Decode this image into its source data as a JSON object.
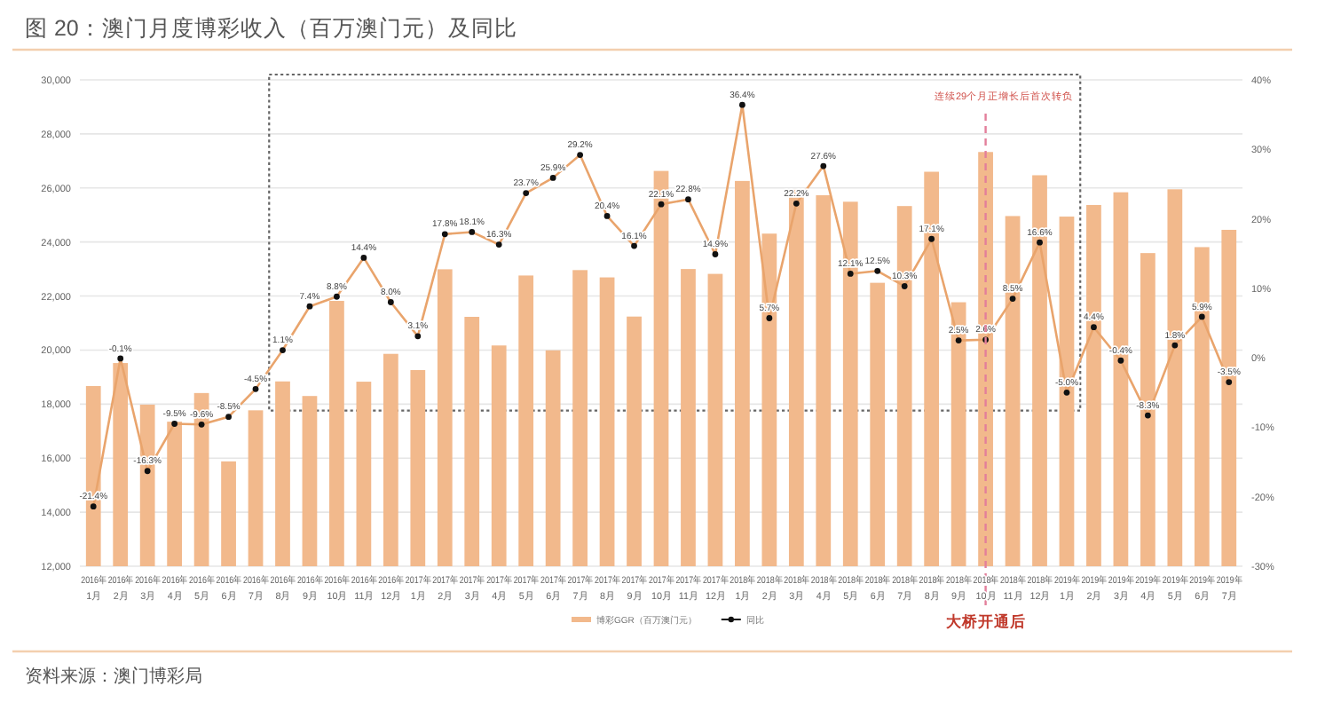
{
  "chart_data": {
    "type": "bar",
    "title": "图 20：澳门月度博彩收入（百万澳门元）及同比",
    "categories": [
      "2016年\n1月",
      "2016年\n2月",
      "2016年\n3月",
      "2016年\n4月",
      "2016年\n5月",
      "2016年\n6月",
      "2016年\n7月",
      "2016年\n8月",
      "2016年\n9月",
      "2016年\n10月",
      "2016年\n11月",
      "2016年\n12月",
      "2017年\n1月",
      "2017年\n2月",
      "2017年\n3月",
      "2017年\n4月",
      "2017年\n5月",
      "2017年\n6月",
      "2017年\n7月",
      "2017年\n8月",
      "2017年\n9月",
      "2017年\n10月",
      "2017年\n11月",
      "2017年\n12月",
      "2018年\n1月",
      "2018年\n2月",
      "2018年\n3月",
      "2018年\n4月",
      "2018年\n5月",
      "2018年\n6月",
      "2018年\n7月",
      "2018年\n8月",
      "2018年\n9月",
      "2018年\n10月",
      "2018年\n11月",
      "2018年\n12月",
      "2019年\n1月",
      "2019年\n2月",
      "2019年\n3月",
      "2019年\n4月",
      "2019年\n5月",
      "2019年\n6月",
      "2019年\n7月"
    ],
    "series": [
      {
        "name": "博彩GGR（百万澳门元）",
        "color": "#f2b98c",
        "values": [
          18670,
          19520,
          17980,
          17350,
          18410,
          15880,
          17770,
          18840,
          18300,
          21820,
          18830,
          19860,
          19260,
          22990,
          21230,
          20170,
          22760,
          19990,
          22960,
          22690,
          21240,
          26630,
          23000,
          22820,
          26260,
          24310,
          25930,
          25730,
          25490,
          22490,
          25330,
          26600,
          21770,
          27330,
          24960,
          26470,
          24940,
          25370,
          25840,
          23590,
          25950,
          23810,
          24450
        ]
      },
      {
        "name": "同比",
        "type": "line",
        "axis": "y2",
        "color": "#e9a46c",
        "values": [
          -21.4,
          -0.1,
          -16.3,
          -9.5,
          -9.6,
          -8.5,
          -4.5,
          1.1,
          7.4,
          8.8,
          14.4,
          8.0,
          3.1,
          17.8,
          18.1,
          16.3,
          23.7,
          25.9,
          29.2,
          20.4,
          16.1,
          22.1,
          22.8,
          14.9,
          36.4,
          5.7,
          22.2,
          27.6,
          12.1,
          12.5,
          10.3,
          17.1,
          2.5,
          2.6,
          8.5,
          16.6,
          -5.0,
          4.4,
          -0.4,
          -8.3,
          1.8,
          5.9,
          -3.5
        ],
        "value_labels": [
          "-21.4%",
          "-0.1%",
          "-16.3%",
          "-9.5%",
          "-9.6%",
          "-8.5%",
          "-4.5%",
          "1.1%",
          "7.4%",
          "8.8%",
          "14.4%",
          "8.0%",
          "3.1%",
          "17.8%",
          "18.1%",
          "16.3%",
          "23.7%",
          "25.9%",
          "29.2%",
          "20.4%",
          "16.1%",
          "22.1%",
          "22.8%",
          "14.9%",
          "36.4%",
          "5.7%",
          "22.2%",
          "27.6%",
          "12.1%",
          "12.5%",
          "10.3%",
          "17.1%",
          "2.5%",
          "2.6%",
          "8.5%",
          "16.6%",
          "-5.0%",
          "4.4%",
          "-0.4%",
          "-8.3%",
          "1.8%",
          "5.9%",
          "-3.5%"
        ]
      }
    ],
    "ylim": [
      12000,
      30000
    ],
    "yticks": [
      {
        "value": 12000,
        "label": "12,000"
      },
      {
        "value": 14000,
        "label": "14,000"
      },
      {
        "value": 16000,
        "label": "16,000"
      },
      {
        "value": 18000,
        "label": "18,000"
      },
      {
        "value": 20000,
        "label": "20,000"
      },
      {
        "value": 22000,
        "label": "22,000"
      },
      {
        "value": 24000,
        "label": "24,000"
      },
      {
        "value": 26000,
        "label": "26,000"
      },
      {
        "value": 28000,
        "label": "28,000"
      },
      {
        "value": 30000,
        "label": "30,000"
      }
    ],
    "y2lim": [
      -30,
      40
    ],
    "y2ticks": [
      {
        "value": -30,
        "label": "-30%"
      },
      {
        "value": -20,
        "label": "-20%"
      },
      {
        "value": -10,
        "label": "-10%"
      },
      {
        "value": 0,
        "label": "0%"
      },
      {
        "value": 10,
        "label": "10%"
      },
      {
        "value": 20,
        "label": "20%"
      },
      {
        "value": 30,
        "label": "30%"
      },
      {
        "value": 40,
        "label": "40%"
      }
    ],
    "grid": "y",
    "legend": "bottom",
    "marker": "circle",
    "ref_lines": [
      {
        "axis": "x",
        "value": "2018年\n10月",
        "label": "大桥开通后",
        "color": "#e37f9b",
        "line_style": "dashed"
      }
    ],
    "annotations": [
      "连续29个月正增长后首次转负",
      "资料来源：澳门博彩局"
    ]
  }
}
